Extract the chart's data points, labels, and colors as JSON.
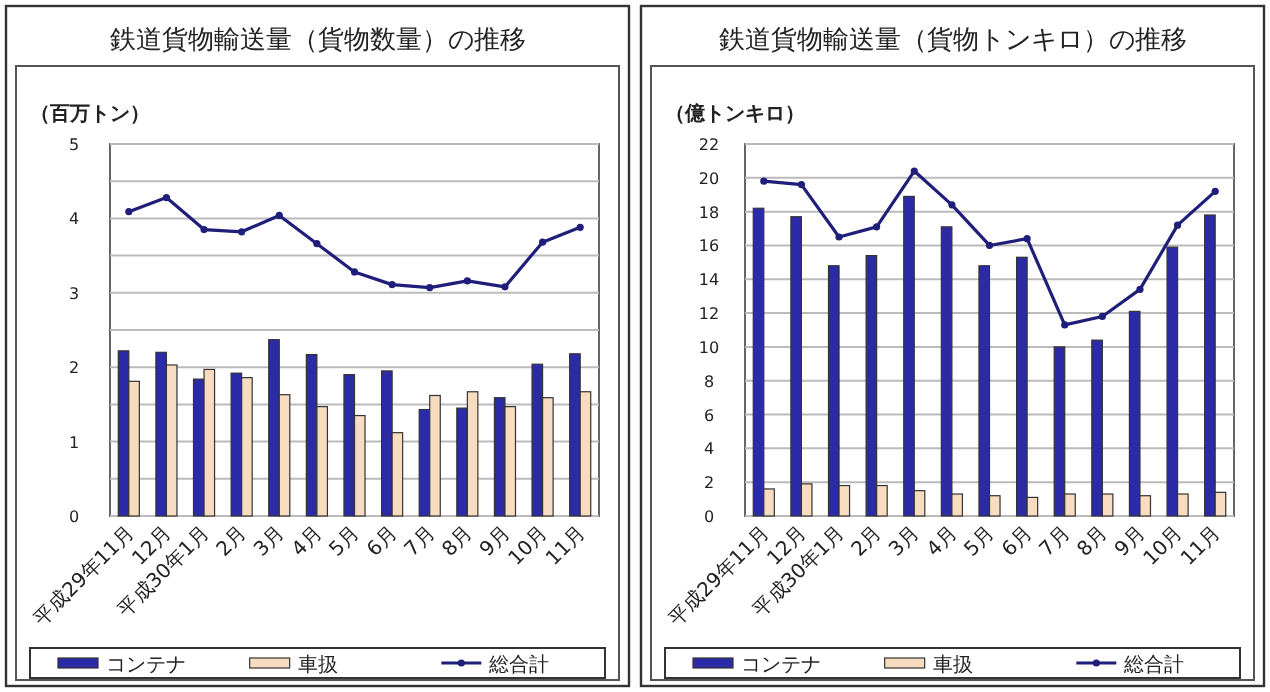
{
  "chart_data": [
    {
      "type": "bar",
      "title": "鉄道貨物輸送量（貨物数量）の推移",
      "ylabel": "（百万トン）",
      "categories": [
        "平成29年11月",
        "12月",
        "平成30年1月",
        "2月",
        "3月",
        "4月",
        "5月",
        "6月",
        "7月",
        "8月",
        "9月",
        "10月",
        "11月"
      ],
      "series": [
        {
          "name": "コンテナ",
          "color": "#2b2ba8",
          "values": [
            2.22,
            2.2,
            1.84,
            1.92,
            2.37,
            2.17,
            1.9,
            1.95,
            1.43,
            1.45,
            1.59,
            2.04,
            2.18
          ]
        },
        {
          "name": "車扱",
          "color": "#f7dcc0",
          "values": [
            1.81,
            2.03,
            1.97,
            1.86,
            1.63,
            1.47,
            1.35,
            1.12,
            1.62,
            1.67,
            1.47,
            1.59,
            1.67
          ]
        },
        {
          "name": "総合計",
          "type": "line",
          "color": "#1f1f7a",
          "marker": "circle",
          "values": [
            4.09,
            4.28,
            3.85,
            3.82,
            4.04,
            3.66,
            3.28,
            3.11,
            3.07,
            3.16,
            3.08,
            3.68,
            3.88
          ]
        }
      ],
      "ylim": [
        0,
        5
      ],
      "yticks": [
        0,
        {
          "value": 0.5,
          "label": null
        },
        1,
        {
          "value": 1.5,
          "label": null
        },
        2,
        {
          "value": 2.5,
          "label": null
        },
        3,
        {
          "value": 3.5,
          "label": null
        },
        4,
        {
          "value": 4.5,
          "label": null
        },
        5
      ],
      "grid": "y",
      "legend": "bottom"
    },
    {
      "type": "bar",
      "title": "鉄道貨物輸送量（貨物トンキロ）の推移",
      "ylabel": "（億トンキロ）",
      "categories": [
        "平成29年11月",
        "12月",
        "平成30年1月",
        "2月",
        "3月",
        "4月",
        "5月",
        "6月",
        "7月",
        "8月",
        "9月",
        "10月",
        "11月"
      ],
      "series": [
        {
          "name": "コンテナ",
          "color": "#2b2ba8",
          "values": [
            18.2,
            17.7,
            14.8,
            15.4,
            18.9,
            17.1,
            14.8,
            15.3,
            10.0,
            10.4,
            12.1,
            15.9,
            17.8
          ]
        },
        {
          "name": "車扱",
          "color": "#f7dcc0",
          "values": [
            1.6,
            1.9,
            1.8,
            1.8,
            1.5,
            1.3,
            1.2,
            1.1,
            1.3,
            1.3,
            1.2,
            1.3,
            1.4
          ]
        },
        {
          "name": "総合計",
          "type": "line",
          "color": "#1f1f7a",
          "marker": "circle",
          "values": [
            19.8,
            19.6,
            16.5,
            17.1,
            20.4,
            18.4,
            16.0,
            16.4,
            11.3,
            11.8,
            13.4,
            17.2,
            19.2
          ]
        }
      ],
      "ylim": [
        0,
        22
      ],
      "yticks": [
        0,
        2,
        4,
        6,
        8,
        10,
        12,
        14,
        16,
        18,
        20,
        22
      ],
      "grid": "y",
      "legend": "bottom"
    }
  ]
}
